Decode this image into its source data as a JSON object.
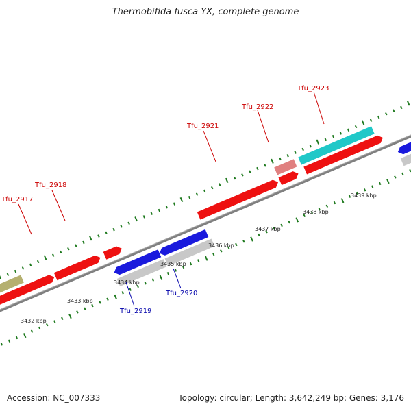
{
  "title": "Thermobifida fusca YX, complete genome",
  "footer": {
    "accession": "Accession: NC_007333",
    "summary": "Topology: circular; Length: 3,642,249 bp; Genes: 3,176"
  },
  "colors": {
    "background": "#ffffff",
    "backbone": "#808080",
    "tick": "#1f7a1f",
    "label_forward": "#cc0000",
    "label_reverse": "#0000aa",
    "gene_red": "#ee1111",
    "gene_blue": "#1a1add",
    "gene_gray": "#c8c8c8",
    "gene_cyan": "#20c8c8",
    "gene_khaki": "#b5b070",
    "gene_orange": "#f08a00",
    "gene_pink": "#e08080"
  },
  "scale": {
    "ticks": [
      {
        "label": "3432 kbp"
      },
      {
        "label": "3433 kbp"
      },
      {
        "label": "3434 kbp"
      },
      {
        "label": "3435 kbp"
      },
      {
        "label": "3436 kbp"
      },
      {
        "label": "3437 kbp"
      },
      {
        "label": "3438 kbp"
      },
      {
        "label": "3439 kbp"
      }
    ]
  },
  "gene_labels": [
    {
      "name": "Tfu_2917",
      "strand": "forward"
    },
    {
      "name": "Tfu_2918",
      "strand": "forward"
    },
    {
      "name": "Tfu_2921",
      "strand": "forward"
    },
    {
      "name": "Tfu_2922",
      "strand": "forward"
    },
    {
      "name": "Tfu_2923",
      "strand": "forward"
    },
    {
      "name": "Tfu_2919",
      "strand": "reverse"
    },
    {
      "name": "Tfu_2920",
      "strand": "reverse"
    }
  ]
}
